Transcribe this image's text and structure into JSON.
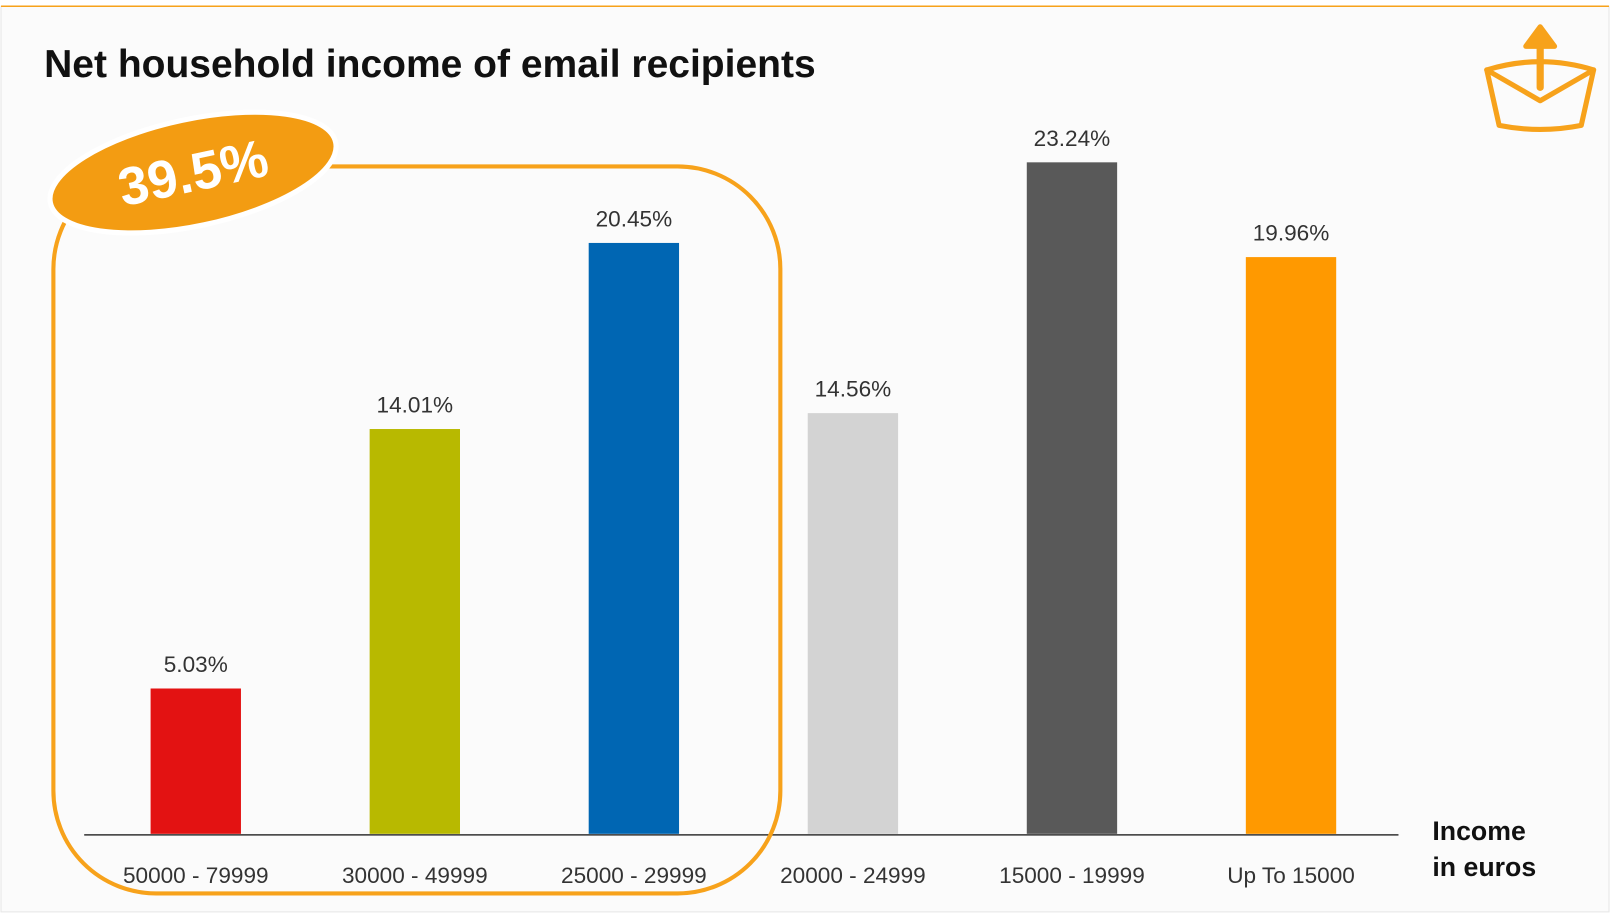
{
  "chart_data": {
    "type": "bar",
    "title": "Net household income of email recipients",
    "xlabel": "Income in euros",
    "annotations": [
      "39.5%"
    ],
    "categories": [
      "50000 - 79999",
      "30000 - 49999",
      "25000 - 29999",
      "20000 - 24999",
      "15000 - 19999",
      "Up To 15000"
    ],
    "values": [
      5.03,
      14.01,
      20.45,
      14.56,
      23.24,
      19.96
    ],
    "value_labels": [
      "5.03%",
      "14.01%",
      "20.45%",
      "14.56%",
      "23.24%",
      "19.96%"
    ],
    "colors": [
      "#e31212",
      "#b8b900",
      "#0066b3",
      "#d3d3d3",
      "#595959",
      "#ff9900"
    ]
  }
}
